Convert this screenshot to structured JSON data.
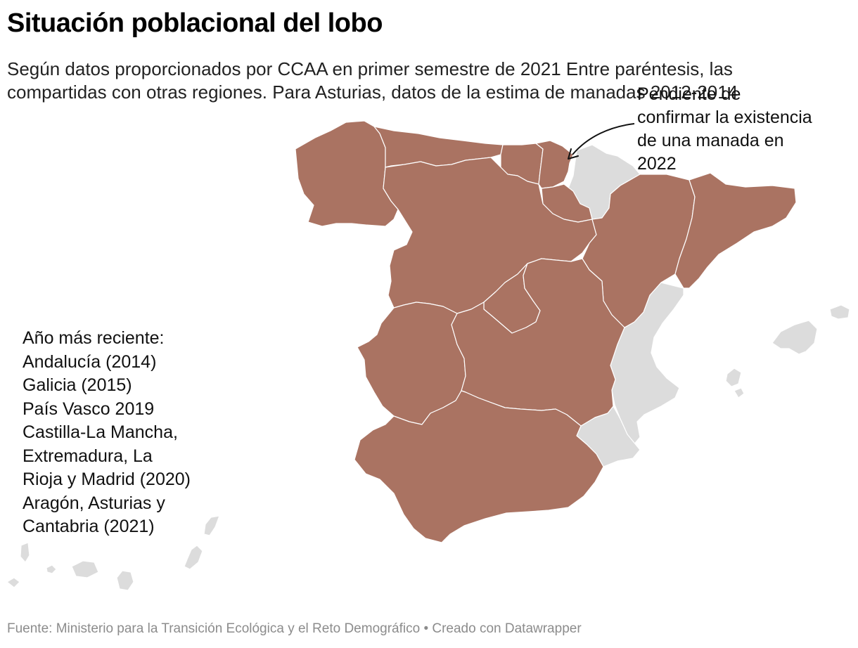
{
  "title": "Situación poblacional del lobo",
  "subtitle": "Según datos proporcionados por CCAA en primer semestre de 2021 Entre paréntesis, las compartidas con otras regiones. Para Asturias, datos de la estima de manadas 2012-2014",
  "annotation": {
    "text": "Pendiente de confirmar la existencia de una manada en 2022"
  },
  "legend_note": {
    "lines": [
      "Año más reciente:",
      "Andalucía (2014)",
      "Galicia (2015)",
      "País Vasco 2019",
      "Castilla-La Mancha, Extremadura, La Rioja y Madrid (2020)",
      "Aragón, Asturias y Cantabria (2021)"
    ]
  },
  "source": "Fuente: Ministerio para la Transición Ecológica y el Reto Demográfico • Creado con Datawrapper",
  "colors": {
    "wolf_present": "#aa7362",
    "no_data": "#dcdcdc",
    "border": "#ffffff",
    "source_text": "#8c8c8c"
  }
}
